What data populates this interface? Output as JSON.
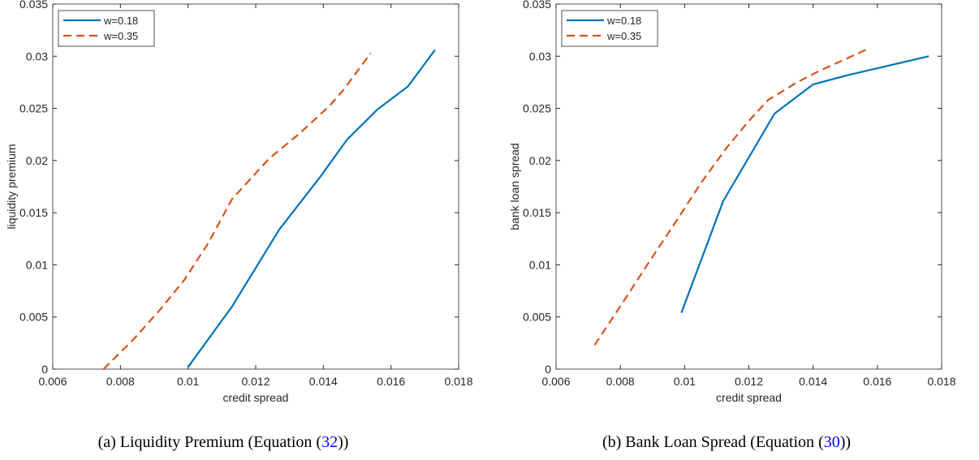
{
  "chart_data": [
    {
      "type": "line",
      "xlabel": "credit spread",
      "ylabel": "liquidity premium",
      "caption": {
        "text": "(a) Liquidity Premium (Equation (",
        "ref": "32",
        "close": "))"
      },
      "xlim": [
        0.006,
        0.018
      ],
      "xticks": [
        0.006,
        0.008,
        0.01,
        0.012,
        0.014,
        0.016,
        0.018
      ],
      "ylim": [
        0,
        0.035
      ],
      "yticks": [
        0,
        0.005,
        0.01,
        0.015,
        0.02,
        0.025,
        0.03,
        0.035
      ],
      "legend": "upper-left",
      "series": [
        {
          "name": "w=0.18",
          "color": "#0072bd",
          "dash": "solid",
          "x": [
            0.01,
            0.0113,
            0.0127,
            0.0139,
            0.0147,
            0.0156,
            0.0165,
            0.0173
          ],
          "values": [
            0.0002,
            0.006,
            0.0134,
            0.0184,
            0.022,
            0.0249,
            0.0271,
            0.0306
          ]
        },
        {
          "name": "w=0.35",
          "color": "#d95319",
          "dash": "dashed",
          "x": [
            0.0075,
            0.0084,
            0.0092,
            0.0099,
            0.0106,
            0.0113,
            0.0124,
            0.0133,
            0.0142,
            0.0146,
            0.0154
          ],
          "values": [
            0,
            0.0029,
            0.0058,
            0.0086,
            0.0121,
            0.0163,
            0.0202,
            0.0226,
            0.0253,
            0.0268,
            0.0303
          ]
        }
      ]
    },
    {
      "type": "line",
      "xlabel": "credit spread",
      "ylabel": "bank loan spread",
      "caption": {
        "text": "(b) Bank Loan Spread (Equation (",
        "ref": "30",
        "close": "))"
      },
      "xlim": [
        0.006,
        0.018
      ],
      "xticks": [
        0.006,
        0.008,
        0.01,
        0.012,
        0.014,
        0.016,
        0.018
      ],
      "ylim": [
        0,
        0.035
      ],
      "yticks": [
        0,
        0.005,
        0.01,
        0.015,
        0.02,
        0.025,
        0.03,
        0.035
      ],
      "legend": "upper-left",
      "series": [
        {
          "name": "w=0.18",
          "color": "#0072bd",
          "dash": "solid",
          "x": [
            0.0099,
            0.0112,
            0.0128,
            0.014,
            0.0151,
            0.0176
          ],
          "values": [
            0.0054,
            0.0161,
            0.0245,
            0.0273,
            0.0282,
            0.03
          ]
        },
        {
          "name": "w=0.35",
          "color": "#d95319",
          "dash": "dashed",
          "x": [
            0.0072,
            0.0081,
            0.0089,
            0.0097,
            0.0105,
            0.0113,
            0.012,
            0.0126,
            0.0135,
            0.0142,
            0.0157
          ],
          "values": [
            0.0023,
            0.0065,
            0.0103,
            0.014,
            0.0178,
            0.0212,
            0.0238,
            0.0258,
            0.0275,
            0.0286,
            0.0307
          ]
        }
      ]
    }
  ]
}
